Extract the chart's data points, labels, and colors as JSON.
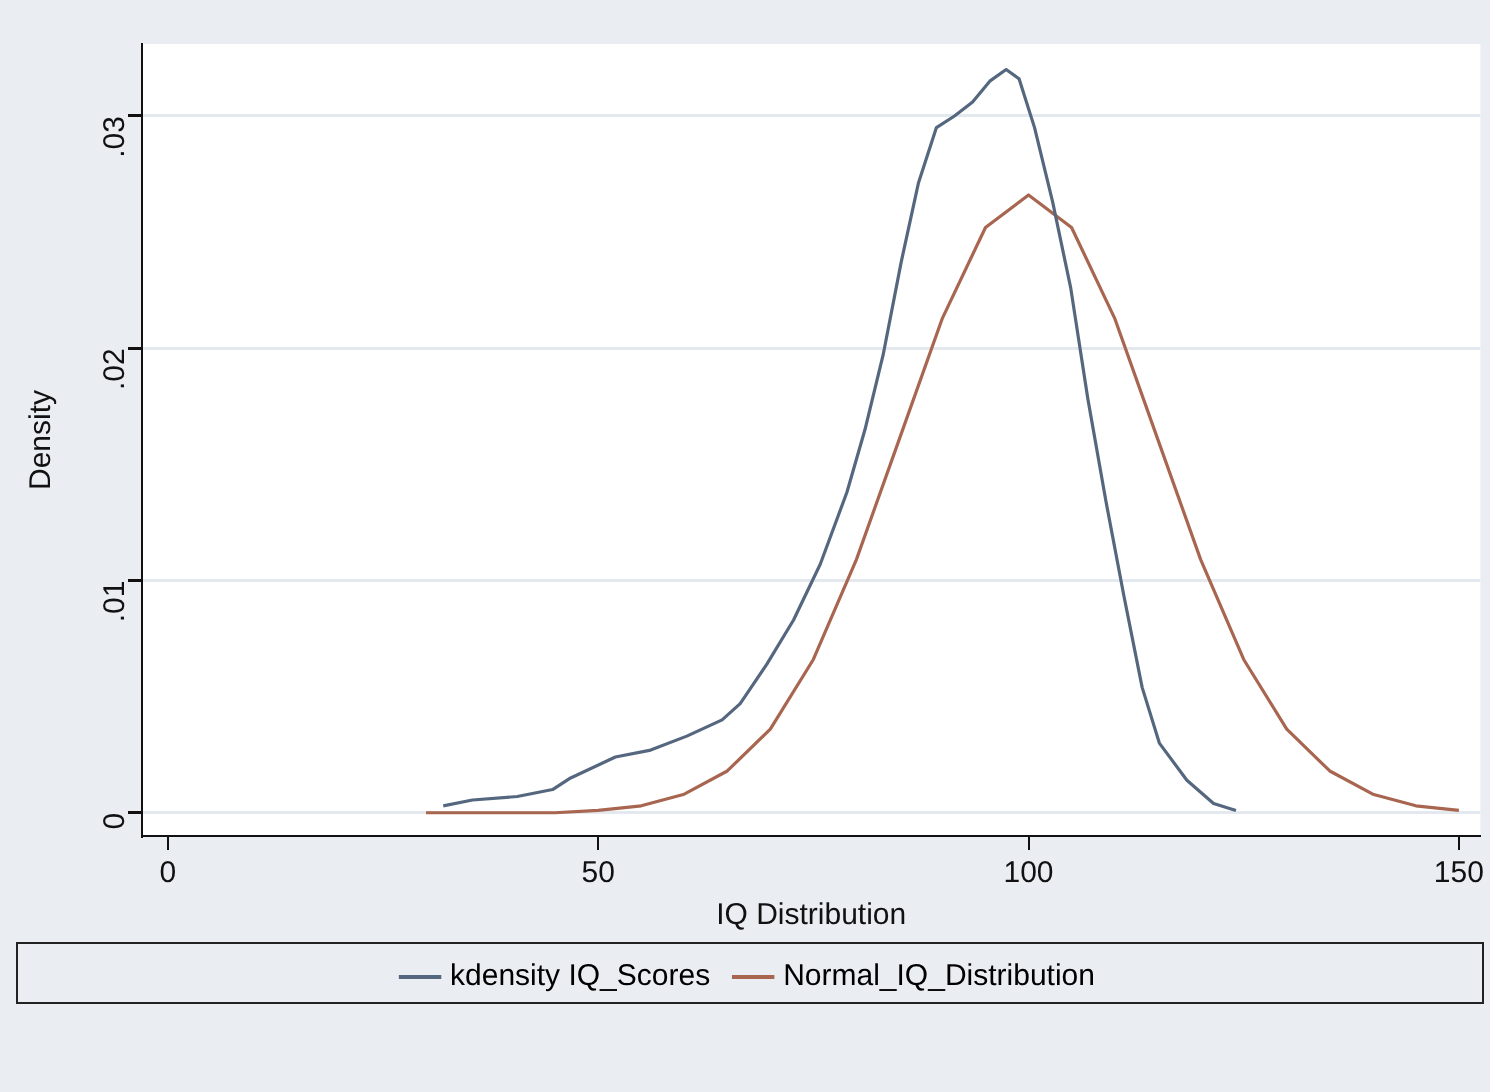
{
  "chart_data": {
    "type": "line",
    "xlabel": "IQ Distribution",
    "ylabel": "Density",
    "xlim": [
      -3,
      152.5
    ],
    "ylim": [
      -0.001,
      0.0331
    ],
    "xticks": [
      0,
      50,
      100,
      150
    ],
    "yticks": [
      {
        "value": 0,
        "label": "0"
      },
      {
        "value": 0.01,
        "label": ".01"
      },
      {
        "value": 0.02,
        "label": ".02"
      },
      {
        "value": 0.03,
        "label": ".03"
      }
    ],
    "grid": "y",
    "legend": "bottom",
    "marker": "none",
    "line_style": "solid",
    "series": [
      {
        "name": "kdensity IQ_Scores",
        "color": "#55677f",
        "x": [
          32,
          35.4,
          40.6,
          44.7,
          46.8,
          52,
          56.1,
          60.3,
          64.4,
          66.5,
          69.6,
          72.7,
          75.8,
          78.9,
          81,
          83.1,
          85.2,
          87.2,
          89.3,
          91.4,
          93.5,
          95.5,
          97.4,
          98.9,
          100.7,
          102.8,
          104.9,
          106.9,
          109,
          111.1,
          113.2,
          115.2,
          118.4,
          121.5,
          124.1
        ],
        "values": [
          0.0003,
          0.00055,
          0.0007,
          0.001,
          0.0015,
          0.0024,
          0.0027,
          0.0033,
          0.004,
          0.0047,
          0.0064,
          0.0083,
          0.0107,
          0.0138,
          0.0165,
          0.0197,
          0.0237,
          0.0271,
          0.0295,
          0.03,
          0.0306,
          0.0315,
          0.032,
          0.0316,
          0.0295,
          0.0263,
          0.0226,
          0.0178,
          0.0134,
          0.0093,
          0.0054,
          0.003,
          0.0014,
          0.0004,
          0.0001
        ]
      },
      {
        "name": "Normal_IQ_Distribution",
        "color": "#a8654f",
        "x": [
          30,
          35,
          40,
          45,
          50,
          55,
          60,
          65,
          70,
          75,
          80,
          85,
          90,
          95,
          100,
          105,
          110,
          115,
          120,
          125,
          130,
          135,
          140,
          145,
          150
        ],
        "values": [
          0,
          0,
          0,
          0,
          0.0001,
          0.0003,
          0.0008,
          0.0018,
          0.0036,
          0.0066,
          0.0109,
          0.0161,
          0.0213,
          0.0252,
          0.0266,
          0.0252,
          0.0213,
          0.0161,
          0.0109,
          0.0066,
          0.0036,
          0.0018,
          0.0008,
          0.0003,
          0.0001
        ]
      }
    ]
  }
}
